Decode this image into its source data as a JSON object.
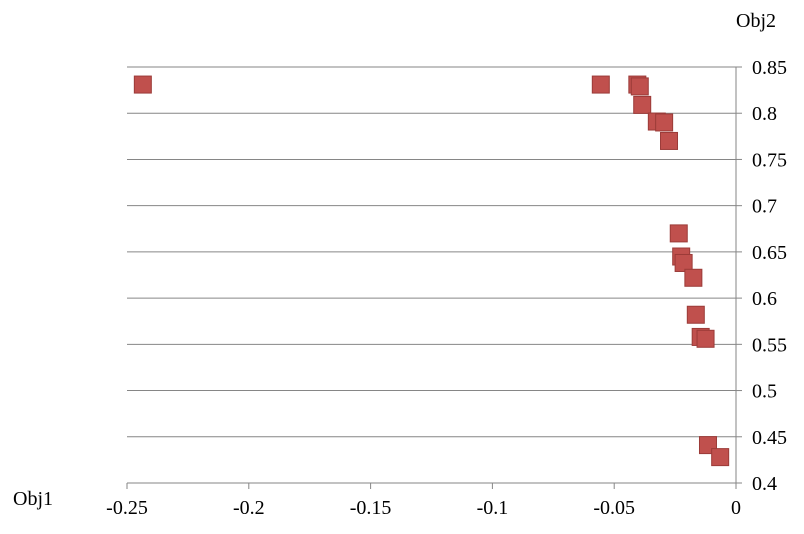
{
  "chart_data": {
    "type": "scatter",
    "title": "",
    "xlabel": "Obj1",
    "ylabel": "Obj2",
    "xlim": [
      -0.25,
      0
    ],
    "ylim": [
      0.4,
      0.85
    ],
    "x_ticks": [
      "-0.25",
      "-0.2",
      "-0.15",
      "-0.1",
      "-0.05",
      "0"
    ],
    "y_ticks": [
      "0.4",
      "0.45",
      "0.5",
      "0.55",
      "0.6",
      "0.65",
      "0.7",
      "0.75",
      "0.8",
      "0.85"
    ],
    "grid": "horizontal",
    "legend": "none",
    "marker": "square",
    "marker_color": "#C0504D",
    "marker_edge_color": "#9B3B38",
    "grid_color": "#868686",
    "series": [
      {
        "x": [
          -0.2435,
          -0.0555,
          -0.0405,
          -0.0395,
          -0.0385,
          -0.0325,
          -0.0295,
          -0.0275,
          -0.0235,
          -0.0225,
          -0.0215,
          -0.0175,
          -0.0165,
          -0.0145,
          -0.0125,
          -0.0115,
          -0.0065
        ],
        "y": [
          0.831,
          0.831,
          0.831,
          0.829,
          0.809,
          0.791,
          0.79,
          0.77,
          0.67,
          0.645,
          0.638,
          0.622,
          0.582,
          0.558,
          0.556,
          0.441,
          0.428
        ]
      }
    ]
  }
}
